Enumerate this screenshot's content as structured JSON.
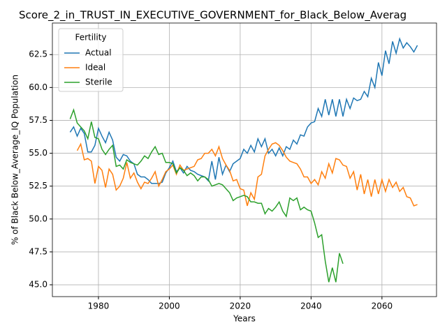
{
  "chart_data": {
    "type": "line",
    "title": "Score_2_in_TRUST_IN_EXECUTIVE_GOVERNMENT_for_Black_Below_Averag",
    "xlabel": "Years",
    "ylabel": "% of Black Below_Average_IQ Population",
    "xlim": [
      1967,
      2075.4
    ],
    "ylim": [
      44.1,
      64.9
    ],
    "xticks": [
      1980,
      2000,
      2020,
      2040,
      2060
    ],
    "yticks": [
      {
        "value": 45,
        "label": "45.0"
      },
      {
        "value": 47.5,
        "label": "47.5"
      },
      {
        "value": 50,
        "label": "50.0"
      },
      {
        "value": 52.5,
        "label": "52.5"
      },
      {
        "value": 55,
        "label": "55.0"
      },
      {
        "value": 57.5,
        "label": "57.5"
      },
      {
        "value": 60,
        "label": "60.0"
      },
      {
        "value": 62.5,
        "label": "62.5"
      }
    ],
    "grid": true,
    "legend_title": "Fertility",
    "legend": "upper left",
    "series": [
      {
        "name": "Actual",
        "color": "#1f77b4",
        "x": [
          1972,
          1973,
          1974,
          1975,
          1976,
          1977,
          1978,
          1979,
          1980,
          1981,
          1982,
          1983,
          1984,
          1985,
          1986,
          1987,
          1988,
          1989,
          1990,
          1991,
          1992,
          1993,
          1994,
          1995,
          1996,
          1997,
          1998,
          1999,
          2000,
          2001,
          2002,
          2003,
          2004,
          2005,
          2006,
          2007,
          2008,
          2009,
          2010,
          2011,
          2012,
          2013,
          2014,
          2015,
          2016,
          2017,
          2018,
          2019,
          2020,
          2021,
          2022,
          2023,
          2024,
          2025,
          2026,
          2027,
          2028,
          2029,
          2030,
          2031,
          2032,
          2033,
          2034,
          2035,
          2036,
          2037,
          2038,
          2039,
          2040,
          2041,
          2042,
          2043,
          2044,
          2045,
          2046,
          2047,
          2048,
          2049,
          2050,
          2051,
          2052,
          2053,
          2054,
          2055,
          2056,
          2057,
          2058,
          2059,
          2060,
          2061,
          2062,
          2063,
          2064,
          2065,
          2066,
          2067,
          2068,
          2069,
          2070
        ],
        "values": [
          56.6,
          57.0,
          56.3,
          56.9,
          56.5,
          55.1,
          55.1,
          55.6,
          56.9,
          56.3,
          55.8,
          56.6,
          56.0,
          54.7,
          54.4,
          54.9,
          54.8,
          54.4,
          54.2,
          53.4,
          53.2,
          53.2,
          53.0,
          52.7,
          52.7,
          52.7,
          52.8,
          53.5,
          53.9,
          54.4,
          53.6,
          53.9,
          53.5,
          54.0,
          53.7,
          53.6,
          53.4,
          53.3,
          53.2,
          52.9,
          54.4,
          53.0,
          54.7,
          53.4,
          54.1,
          53.6,
          54.2,
          54.4,
          54.6,
          55.3,
          55.0,
          55.6,
          55.1,
          56.1,
          55.5,
          56.1,
          55.0,
          55.3,
          54.8,
          55.4,
          54.8,
          55.5,
          55.3,
          56.0,
          55.7,
          56.4,
          56.3,
          57.0,
          57.3,
          57.4,
          58.4,
          57.8,
          59.1,
          57.9,
          59.1,
          57.8,
          59.1,
          57.8,
          59.1,
          58.4,
          59.2,
          59.0,
          59.1,
          59.7,
          59.3,
          60.7,
          60.0,
          61.9,
          60.9,
          62.8,
          61.8,
          63.5,
          62.6,
          63.7,
          63.0,
          63.4,
          63.1,
          62.7,
          63.2
        ]
      },
      {
        "name": "Ideal",
        "color": "#ff7f0e",
        "x": [
          1974,
          1975,
          1976,
          1977,
          1978,
          1979,
          1980,
          1981,
          1982,
          1983,
          1984,
          1985,
          1986,
          1987,
          1988,
          1989,
          1990,
          1991,
          1992,
          1993,
          1994,
          1995,
          1996,
          1997,
          1998,
          1999,
          2000,
          2001,
          2002,
          2003,
          2004,
          2005,
          2006,
          2007,
          2008,
          2009,
          2010,
          2011,
          2012,
          2013,
          2014,
          2015,
          2016,
          2017,
          2018,
          2019,
          2020,
          2021,
          2022,
          2023,
          2024,
          2025,
          2026,
          2027,
          2028,
          2029,
          2030,
          2031,
          2032,
          2033,
          2034,
          2035,
          2036,
          2037,
          2038,
          2039,
          2040,
          2041,
          2042,
          2043,
          2044,
          2045,
          2046,
          2047,
          2048,
          2049,
          2050,
          2051,
          2052,
          2053,
          2054,
          2055,
          2056,
          2057,
          2058,
          2059,
          2060,
          2061,
          2062,
          2063,
          2064,
          2065,
          2066,
          2067,
          2068,
          2069,
          2070
        ],
        "values": [
          55.2,
          55.7,
          54.5,
          54.6,
          54.4,
          52.7,
          54.0,
          53.7,
          52.4,
          53.8,
          53.4,
          52.2,
          52.5,
          53.1,
          54.3,
          53.1,
          53.5,
          52.8,
          52.3,
          52.8,
          52.7,
          53.1,
          53.6,
          52.5,
          53.0,
          53.6,
          53.8,
          54.1,
          53.4,
          54.1,
          53.7,
          53.8,
          53.9,
          54.0,
          54.5,
          54.6,
          55.0,
          55.0,
          55.3,
          54.8,
          55.5,
          54.6,
          54.1,
          53.7,
          52.9,
          53.0,
          52.3,
          52.2,
          51.0,
          52.0,
          51.5,
          53.2,
          53.4,
          54.8,
          55.3,
          55.7,
          55.8,
          55.6,
          55.2,
          54.7,
          54.4,
          54.3,
          54.2,
          53.8,
          53.2,
          53.2,
          52.7,
          53.0,
          52.6,
          53.6,
          53.1,
          54.2,
          53.5,
          54.6,
          54.5,
          54.1,
          54.0,
          53.1,
          53.6,
          52.2,
          53.4,
          51.9,
          53.0,
          51.7,
          53.0,
          51.9,
          53.0,
          52.1,
          53.0,
          52.4,
          52.8,
          52.1,
          52.4,
          51.7,
          51.6,
          51.0,
          51.1
        ]
      },
      {
        "name": "Sterile",
        "color": "#2ca02c",
        "x": [
          1972,
          1973,
          1974,
          1975,
          1976,
          1977,
          1978,
          1979,
          1980,
          1981,
          1982,
          1983,
          1984,
          1985,
          1986,
          1987,
          1988,
          1989,
          1990,
          1991,
          1992,
          1993,
          1994,
          1995,
          1996,
          1997,
          1998,
          1999,
          2000,
          2001,
          2002,
          2003,
          2004,
          2005,
          2006,
          2007,
          2008,
          2009,
          2010,
          2011,
          2012,
          2013,
          2014,
          2015,
          2016,
          2017,
          2018,
          2019,
          2020,
          2021,
          2022,
          2023,
          2024,
          2025,
          2026,
          2027,
          2028,
          2029,
          2030,
          2031,
          2032,
          2033,
          2034,
          2035,
          2036,
          2037,
          2038,
          2039,
          2040,
          2041,
          2042,
          2043,
          2044,
          2045,
          2046,
          2047,
          2048,
          2049
        ],
        "values": [
          57.6,
          58.3,
          57.3,
          57.0,
          56.7,
          56.1,
          57.4,
          56.2,
          56.1,
          55.3,
          54.9,
          55.3,
          55.6,
          54.0,
          54.1,
          53.8,
          54.5,
          54.3,
          54.2,
          54.1,
          54.4,
          54.8,
          54.6,
          55.1,
          55.5,
          54.9,
          55.0,
          54.3,
          54.3,
          54.2,
          53.5,
          53.9,
          53.7,
          53.3,
          53.5,
          53.3,
          52.9,
          53.2,
          53.2,
          53.0,
          52.5,
          52.6,
          52.7,
          52.6,
          52.3,
          52.0,
          51.4,
          51.6,
          51.7,
          51.8,
          51.7,
          51.3,
          51.3,
          51.2,
          51.2,
          50.4,
          50.8,
          50.6,
          50.9,
          51.3,
          50.6,
          50.2,
          51.6,
          51.4,
          51.6,
          50.7,
          50.9,
          50.7,
          50.6,
          49.7,
          48.6,
          48.8,
          46.8,
          45.2,
          46.3,
          45.2,
          47.4,
          46.6
        ]
      }
    ]
  }
}
